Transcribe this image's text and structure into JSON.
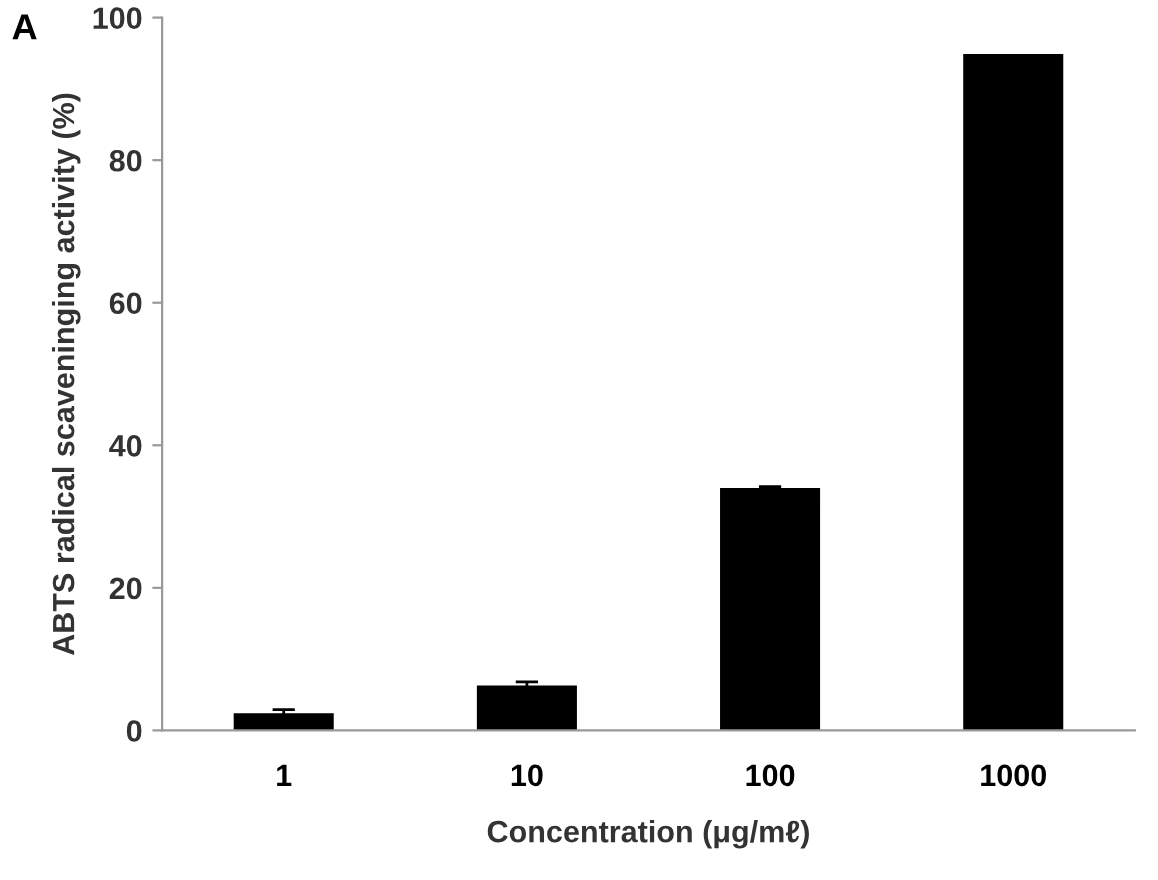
{
  "chart_data": {
    "type": "bar",
    "title": "A",
    "xlabel": "Concentration (μg/mℓ)",
    "ylabel": "ABTS radical scaveninging activity (%)",
    "categories": [
      "1",
      "10",
      "100",
      "1000"
    ],
    "values": [
      2.2,
      6.1,
      33.8,
      94.7
    ],
    "errors": [
      0.7,
      0.7,
      0.4,
      null
    ],
    "color": "#000000",
    "ylim": [
      0,
      100
    ],
    "yticks": [
      0,
      20,
      40,
      60,
      80,
      100
    ],
    "grid": false
  }
}
